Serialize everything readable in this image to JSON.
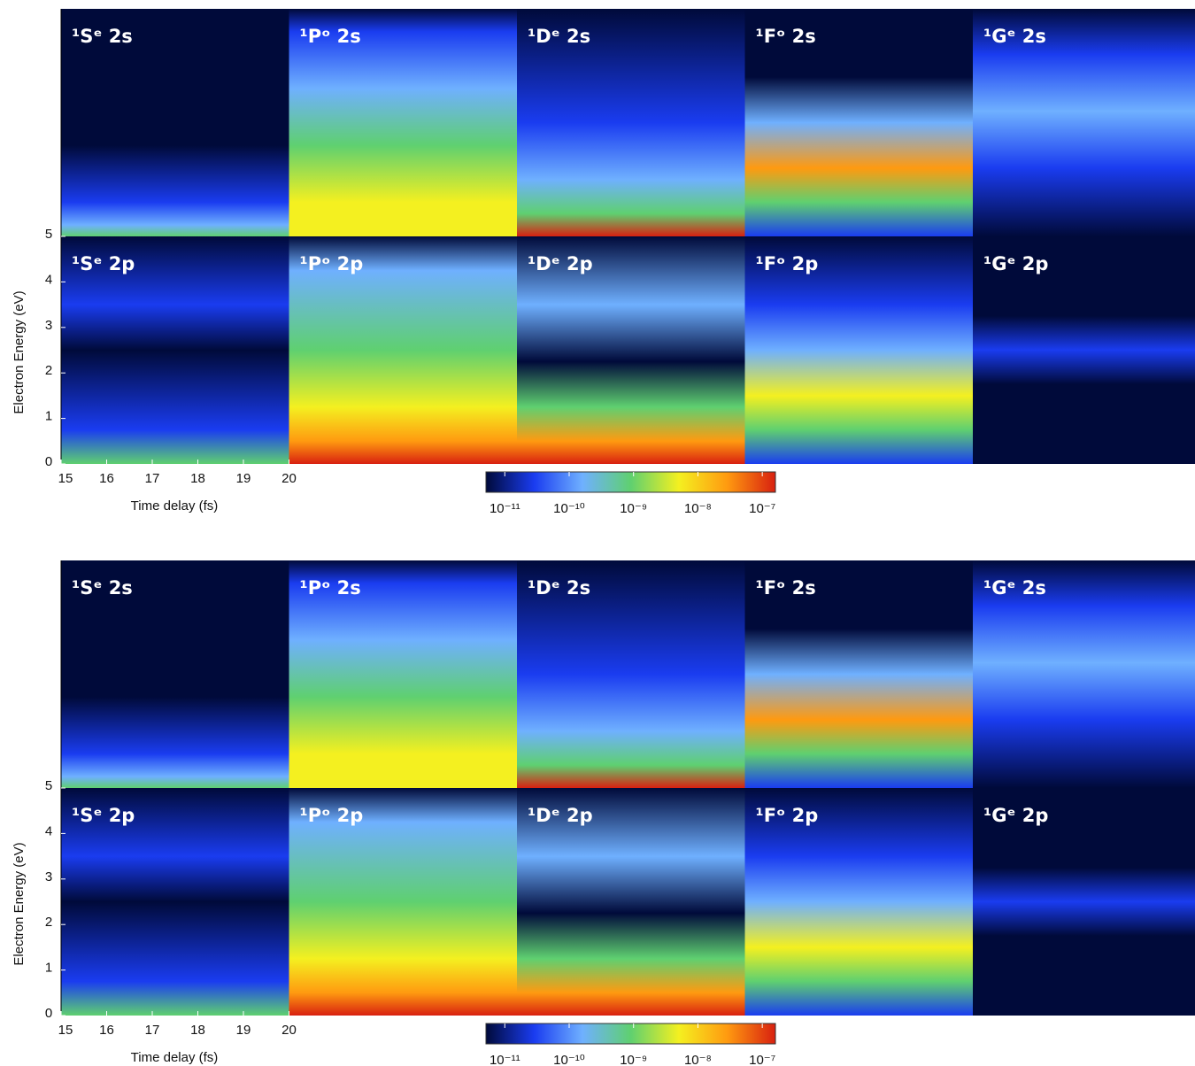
{
  "chart_data": [
    {
      "type": "heatmap",
      "panels": [
        "¹Sᵉ 2s",
        "¹Pᵒ 2s",
        "¹Dᵉ 2s",
        "¹Fᵒ 2s",
        "¹Gᵉ 2s",
        "¹Sᵉ 2p",
        "¹Pᵒ 2p",
        "¹Dᵉ 2p",
        "¹Fᵒ 2p",
        "¹Gᵉ 2p"
      ],
      "xlabel": "Time delay (fs)",
      "ylabel": "Electron Energy (eV)",
      "xlim": [
        15,
        20
      ],
      "xticks": [
        15,
        16,
        17,
        18,
        19,
        20
      ],
      "ylim": [
        0,
        5
      ],
      "yticks": [
        0,
        1,
        2,
        3,
        4,
        5
      ],
      "colorbar": {
        "log": true,
        "lim": [
          5.1e-12,
          1.6e-07
        ],
        "ticks": [
          {
            "value": 1e-11,
            "label": "10⁻¹¹"
          },
          {
            "value": 1e-10,
            "label": "10⁻¹⁰"
          },
          {
            "value": 1e-09,
            "label": "10⁻⁹"
          },
          {
            "value": 1e-08,
            "label": "10⁻⁸"
          },
          {
            "value": 1e-07,
            "label": "10⁻⁷"
          }
        ],
        "colors": [
          "#000a3a",
          "#1a3cf0",
          "#6fb0ff",
          "#5fd070",
          "#f4f020",
          "#ff9a10",
          "#d82010"
        ]
      }
    },
    {
      "type": "heatmap",
      "panels": [
        "¹Sᵉ 2s",
        "¹Pᵒ 2s",
        "¹Dᵉ 2s",
        "¹Fᵒ 2s",
        "¹Gᵉ 2s",
        "¹Sᵉ 2p",
        "¹Pᵒ 2p",
        "¹Dᵉ 2p",
        "¹Fᵒ 2p",
        "¹Gᵉ 2p"
      ],
      "xlabel": "Time delay (fs)",
      "ylabel": "Electron Energy (eV)",
      "xlim": [
        15,
        20
      ],
      "xticks": [
        15,
        16,
        17,
        18,
        19,
        20
      ],
      "ylim": [
        0,
        5
      ],
      "yticks": [
        0,
        1,
        2,
        3,
        4,
        5
      ],
      "colorbar": {
        "log": true,
        "lim": [
          5.1e-12,
          1.6e-07
        ],
        "ticks": [
          {
            "value": 1e-11,
            "label": "10⁻¹¹"
          },
          {
            "value": 1e-10,
            "label": "10⁻¹⁰"
          },
          {
            "value": 1e-09,
            "label": "10⁻⁹"
          },
          {
            "value": 1e-08,
            "label": "10⁻⁸"
          },
          {
            "value": 1e-07,
            "label": "10⁻⁷"
          }
        ],
        "colors": [
          "#000a3a",
          "#1a3cf0",
          "#6fb0ff",
          "#5fd070",
          "#f4f020",
          "#ff9a10",
          "#d82010"
        ]
      }
    }
  ]
}
